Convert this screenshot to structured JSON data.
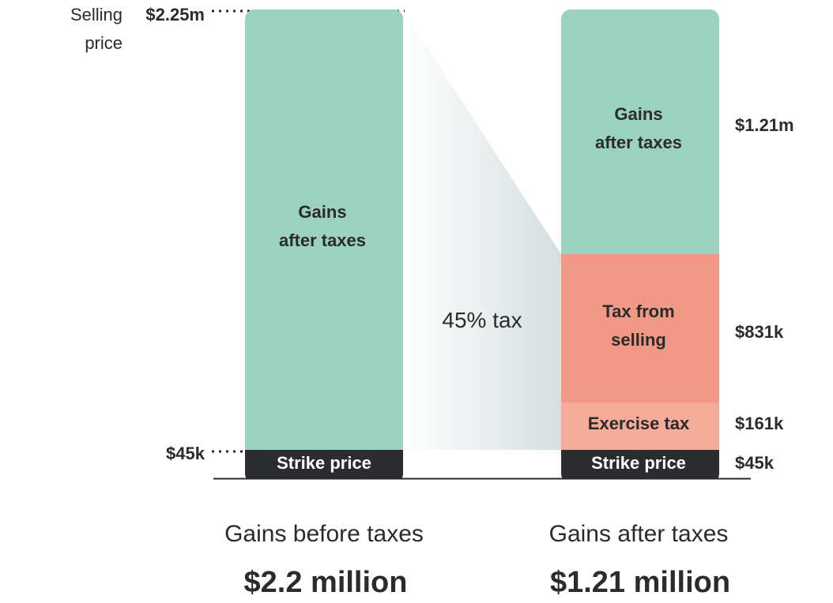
{
  "chart_data": {
    "type": "bar",
    "unit": "USD",
    "axis_labels": {
      "selling_price_line1": "Selling",
      "selling_price_line2": "price",
      "selling_price_value": "$2.25m",
      "strike_value": "$45k"
    },
    "annotation": "45% tax",
    "bars": [
      {
        "caption": "Gains before taxes",
        "total_label": "$2.2 million",
        "segments": [
          {
            "label": "Strike price",
            "value": 45000,
            "color": "#2b2c30",
            "text_color": "#ffffff"
          },
          {
            "label_line1": "Gains",
            "label_line2": "after taxes",
            "value": 2205000,
            "color": "#9ad1bf",
            "text_color": "#2b2b2b"
          }
        ]
      },
      {
        "caption": "Gains after taxes",
        "total_label": "$1.21 million",
        "segments": [
          {
            "label": "Strike price",
            "value": 45000,
            "value_label": "$45k",
            "color": "#2b2c30",
            "text_color": "#ffffff"
          },
          {
            "label": "Exercise tax",
            "value": 161000,
            "value_label": "$161k",
            "color": "#f4ab9a",
            "text_color": "#2b2b2b"
          },
          {
            "label_line1": "Tax from",
            "label_line2": "selling",
            "value": 831000,
            "value_label": "$831k",
            "color": "#ef9986",
            "text_color": "#2b2b2b"
          },
          {
            "label_line1": "Gains",
            "label_line2": "after taxes",
            "value": 1213000,
            "value_label": "$1.21m",
            "color": "#9ad1bf",
            "text_color": "#2b2b2b"
          }
        ]
      }
    ]
  }
}
